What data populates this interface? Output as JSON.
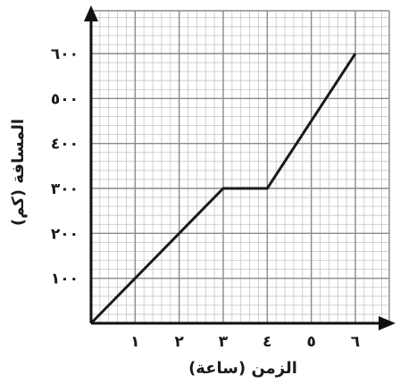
{
  "chart_data": {
    "type": "line",
    "xlabel": "الزمن (ساعة)",
    "ylabel": "المسافة (كم)",
    "xlim": [
      0,
      6
    ],
    "ylim": [
      0,
      600
    ],
    "x_ticks": [
      1,
      2,
      3,
      4,
      5,
      6
    ],
    "x_tick_labels": [
      "١",
      "٢",
      "٣",
      "٤",
      "٥",
      "٦"
    ],
    "y_ticks": [
      100,
      200,
      300,
      400,
      500,
      600
    ],
    "y_tick_labels": [
      "١٠٠",
      "٢٠٠",
      "٣٠٠",
      "٤٠٠",
      "٥٠٠",
      "٦٠٠"
    ],
    "grid": true,
    "x": [
      0,
      3,
      4,
      6
    ],
    "y": [
      0,
      300,
      300,
      600
    ],
    "colors": {
      "line": "#1a1a1a",
      "grid_major": "#8a8a8a",
      "grid_minor": "#c4c4c4",
      "axis": "#111111"
    }
  }
}
